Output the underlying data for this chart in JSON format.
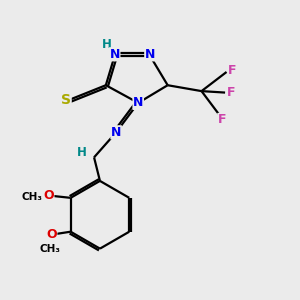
{
  "bg_color": "#ebebeb",
  "atom_colors": {
    "N": "#0000ee",
    "S": "#aaaa00",
    "O": "#dd0000",
    "F": "#cc44aa",
    "C": "#000000",
    "H": "#008888"
  },
  "bond_color": "#000000",
  "bond_width": 1.6,
  "figsize": [
    3.0,
    3.0
  ],
  "dpi": 100
}
